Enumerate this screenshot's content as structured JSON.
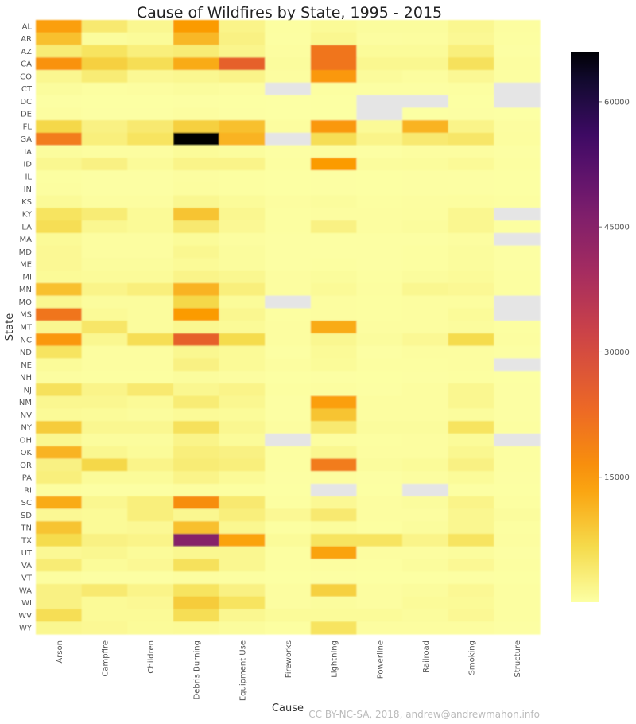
{
  "chart_data": {
    "type": "heatmap",
    "title": "Cause of Wildfires by State, 1995 - 2015",
    "xlabel": "Cause",
    "ylabel": "State",
    "credit": "CC BY-NC-SA, 2018, andrew@andrewmahon.info",
    "colormap": "inferno_r",
    "missing_color": "#e5e5e5",
    "colorbar": {
      "min": 0,
      "max": 66000,
      "ticks": [
        15000,
        30000,
        45000,
        60000
      ]
    },
    "x": [
      "Arson",
      "Campfire",
      "Children",
      "Debris Burning",
      "Equipment Use",
      "Fireworks",
      "Lightning",
      "Powerline",
      "Railroad",
      "Smoking",
      "Structure"
    ],
    "y": [
      "AL",
      "AR",
      "AZ",
      "CA",
      "CO",
      "CT",
      "DC",
      "DE",
      "FL",
      "GA",
      "IA",
      "ID",
      "IL",
      "IN",
      "KS",
      "KY",
      "LA",
      "MA",
      "MD",
      "ME",
      "MI",
      "MN",
      "MO",
      "MS",
      "MT",
      "NC",
      "ND",
      "NE",
      "NH",
      "NJ",
      "NM",
      "NV",
      "NY",
      "OH",
      "OK",
      "OR",
      "PA",
      "RI",
      "SC",
      "SD",
      "TN",
      "TX",
      "UT",
      "VA",
      "VT",
      "WA",
      "WI",
      "WV",
      "WY"
    ],
    "values": [
      [
        14000,
        4000,
        1500,
        14500,
        2000,
        200,
        1000,
        500,
        500,
        1500,
        300
      ],
      [
        10000,
        500,
        800,
        11000,
        2500,
        150,
        1500,
        300,
        400,
        1200,
        200
      ],
      [
        3500,
        5000,
        3000,
        3500,
        1800,
        300,
        21000,
        800,
        800,
        3000,
        100
      ],
      [
        16000,
        8000,
        6000,
        12500,
        25000,
        500,
        21000,
        1500,
        1500,
        5500,
        300
      ],
      [
        1500,
        3500,
        1200,
        1500,
        2000,
        300,
        15000,
        700,
        400,
        1200,
        200
      ],
      [
        500,
        200,
        300,
        500,
        300,
        null,
        200,
        100,
        100,
        200,
        null
      ],
      [
        100,
        50,
        50,
        100,
        50,
        20,
        50,
        null,
        null,
        50,
        null
      ],
      [
        300,
        100,
        100,
        300,
        100,
        30,
        50,
        null,
        50,
        100,
        30
      ],
      [
        7000,
        2500,
        4000,
        8000,
        10000,
        400,
        15000,
        1000,
        11500,
        2000,
        300
      ],
      [
        20000,
        3000,
        5000,
        66000,
        11500,
        null,
        6000,
        2000,
        4000,
        4500,
        400
      ],
      [
        500,
        300,
        300,
        800,
        500,
        100,
        300,
        100,
        300,
        300,
        100
      ],
      [
        1500,
        2500,
        800,
        2000,
        2000,
        200,
        14500,
        500,
        600,
        1000,
        200
      ],
      [
        200,
        100,
        100,
        300,
        200,
        50,
        100,
        50,
        100,
        100,
        50
      ],
      [
        300,
        100,
        100,
        400,
        200,
        50,
        100,
        50,
        100,
        100,
        50
      ],
      [
        1000,
        300,
        300,
        1500,
        800,
        300,
        500,
        200,
        300,
        400,
        200
      ],
      [
        5000,
        3500,
        1000,
        9500,
        1500,
        200,
        300,
        300,
        400,
        1500,
        null
      ],
      [
        6000,
        1500,
        1000,
        4000,
        1200,
        200,
        2500,
        300,
        500,
        1500,
        200
      ],
      [
        1000,
        300,
        300,
        800,
        300,
        100,
        100,
        100,
        100,
        300,
        null
      ],
      [
        1200,
        300,
        300,
        1500,
        500,
        100,
        100,
        100,
        200,
        500,
        100
      ],
      [
        1200,
        500,
        500,
        1000,
        500,
        100,
        200,
        100,
        200,
        500,
        100
      ],
      [
        1000,
        800,
        800,
        2000,
        1500,
        300,
        600,
        200,
        500,
        800,
        200
      ],
      [
        10000,
        2000,
        3000,
        11500,
        3000,
        300,
        1000,
        300,
        1500,
        1200,
        200
      ],
      [
        1500,
        500,
        500,
        7000,
        800,
        null,
        300,
        200,
        300,
        400,
        null
      ],
      [
        21000,
        1000,
        500,
        14500,
        1500,
        200,
        300,
        200,
        300,
        800,
        null
      ],
      [
        1500,
        4500,
        500,
        1500,
        1000,
        300,
        12500,
        300,
        300,
        500,
        200
      ],
      [
        15000,
        1500,
        6000,
        25000,
        6500,
        300,
        1500,
        500,
        1200,
        6500,
        300
      ],
      [
        5000,
        300,
        300,
        1500,
        1000,
        100,
        1000,
        100,
        300,
        300,
        100
      ],
      [
        800,
        300,
        300,
        2500,
        1000,
        300,
        800,
        200,
        200,
        300,
        null
      ],
      [
        300,
        200,
        200,
        500,
        300,
        50,
        100,
        50,
        100,
        200,
        50
      ],
      [
        5500,
        2000,
        4000,
        1500,
        2000,
        200,
        300,
        100,
        300,
        1500,
        100
      ],
      [
        1500,
        1500,
        1000,
        3500,
        1500,
        100,
        14000,
        300,
        300,
        1500,
        100
      ],
      [
        1000,
        800,
        500,
        1000,
        800,
        100,
        9500,
        300,
        300,
        500,
        100
      ],
      [
        8500,
        1500,
        1500,
        5500,
        1500,
        300,
        4000,
        500,
        500,
        5000,
        200
      ],
      [
        1500,
        500,
        500,
        2000,
        800,
        null,
        300,
        200,
        300,
        800,
        null
      ],
      [
        11500,
        1500,
        800,
        3000,
        2500,
        200,
        1500,
        300,
        300,
        1500,
        200
      ],
      [
        2500,
        7000,
        2000,
        3500,
        3000,
        200,
        20000,
        500,
        800,
        2500,
        200
      ],
      [
        3000,
        800,
        800,
        2000,
        1000,
        100,
        300,
        100,
        300,
        800,
        100
      ],
      [
        300,
        100,
        100,
        300,
        200,
        50,
        null,
        50,
        null,
        100,
        50
      ],
      [
        12500,
        1500,
        3000,
        17000,
        4000,
        200,
        1200,
        300,
        500,
        2000,
        200
      ],
      [
        1200,
        1000,
        3000,
        1500,
        3000,
        1200,
        4000,
        300,
        300,
        1500,
        500
      ],
      [
        9500,
        1000,
        1200,
        10000,
        1500,
        200,
        600,
        200,
        500,
        1500,
        200
      ],
      [
        6500,
        2500,
        2000,
        45000,
        13500,
        800,
        5000,
        5000,
        2000,
        5000,
        300
      ],
      [
        1200,
        1500,
        800,
        1500,
        1500,
        200,
        13500,
        300,
        300,
        500,
        100
      ],
      [
        3500,
        800,
        1200,
        5500,
        1500,
        200,
        300,
        200,
        500,
        1200,
        200
      ],
      [
        300,
        100,
        100,
        300,
        200,
        50,
        100,
        50,
        50,
        100,
        50
      ],
      [
        2500,
        4000,
        2000,
        5000,
        2500,
        300,
        8000,
        300,
        500,
        1200,
        200
      ],
      [
        2500,
        1000,
        1200,
        8500,
        5000,
        300,
        500,
        300,
        800,
        1000,
        200
      ],
      [
        6000,
        1000,
        1000,
        6000,
        1500,
        800,
        800,
        800,
        500,
        1200,
        200
      ],
      [
        1500,
        1200,
        800,
        1000,
        500,
        200,
        5000,
        300,
        300,
        300,
        100
      ]
    ]
  }
}
